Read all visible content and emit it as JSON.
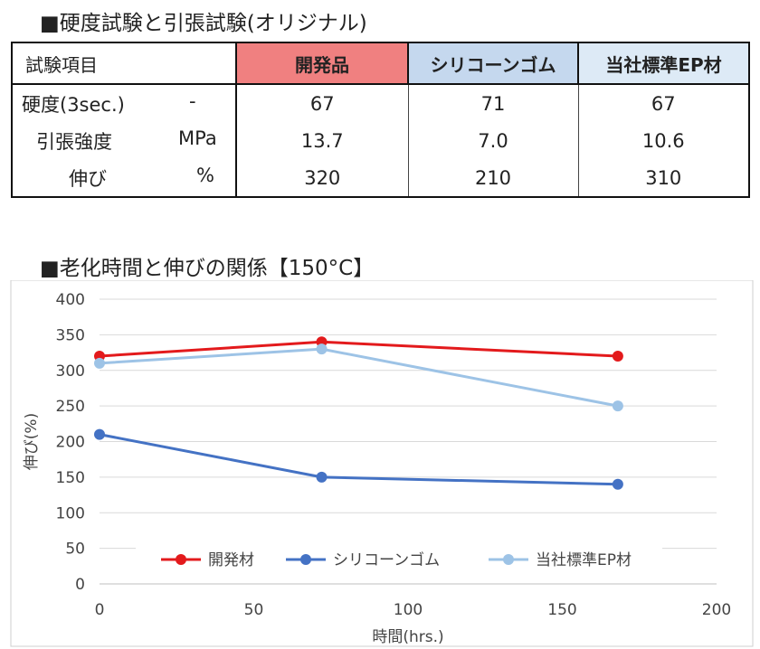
{
  "section1_title": "■硬度試験と引張試験(オリジナル)",
  "table": {
    "header_item": "試験項目",
    "columns": [
      "開発品",
      "シリコーンゴム",
      "当社標準EP材"
    ],
    "rows": [
      {
        "name": "硬度(3sec.)",
        "unit": "-",
        "values": [
          "67",
          "71",
          "67"
        ]
      },
      {
        "name": "引張強度",
        "unit": "MPa",
        "values": [
          "13.7",
          "7.0",
          "10.6"
        ]
      },
      {
        "name": "伸び",
        "unit": "%",
        "values": [
          "320",
          "210",
          "310"
        ]
      }
    ]
  },
  "section2_title": "■老化時間と伸びの関係【150°C】",
  "colors": {
    "dev": "#e31a1c",
    "silicone": "#4472c4",
    "ep": "#9dc3e6",
    "header_dev": "#f08080",
    "header_silicone": "#c5d8ee",
    "header_ep": "#ddeaf6"
  },
  "chart_data": {
    "type": "line",
    "xlabel": "時間(hrs.)",
    "ylabel": "伸び(%)",
    "xlim": [
      0,
      200
    ],
    "ylim": [
      0,
      400
    ],
    "xticks": [
      0,
      50,
      100,
      150,
      200
    ],
    "yticks": [
      0,
      50,
      100,
      150,
      200,
      250,
      300,
      350,
      400
    ],
    "grid": "horizontal",
    "legend_position": "bottom-inside",
    "series": [
      {
        "name": "開発材",
        "color": "#e31a1c",
        "x": [
          0,
          72,
          168
        ],
        "y": [
          320,
          340,
          320
        ]
      },
      {
        "name": "シリコーンゴム",
        "color": "#4472c4",
        "x": [
          0,
          72,
          168
        ],
        "y": [
          210,
          150,
          140
        ]
      },
      {
        "name": "当社標準EP材",
        "color": "#9dc3e6",
        "x": [
          0,
          72,
          168
        ],
        "y": [
          310,
          330,
          250
        ]
      }
    ]
  }
}
